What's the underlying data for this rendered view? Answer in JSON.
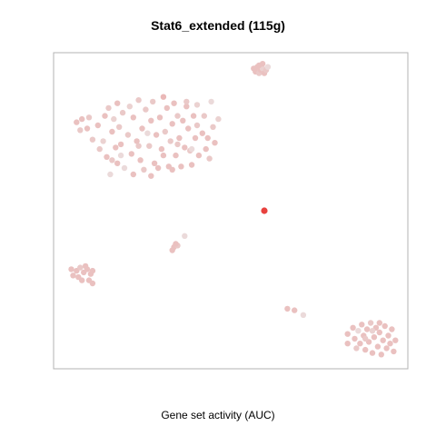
{
  "chart_data": {
    "type": "scatter",
    "title": "Stat6_extended (115g)",
    "xlabel": "Gene set activity (AUC)",
    "ylabel": "",
    "grid": false,
    "legend": false,
    "xlim": [
      0,
      100
    ],
    "ylim": [
      0,
      100
    ],
    "color_scale": {
      "low": "#ebebeb",
      "high": "#e8413e"
    },
    "series": [
      {
        "points": [
          {
            "x": 6.5,
            "y": 78,
            "v": 0.25
          },
          {
            "x": 7.5,
            "y": 75.5,
            "v": 0.2
          },
          {
            "x": 8,
            "y": 79,
            "v": 0.25
          },
          {
            "x": 9.5,
            "y": 76,
            "v": 0.25
          },
          {
            "x": 10,
            "y": 79.5,
            "v": 0.2
          },
          {
            "x": 11,
            "y": 72.5,
            "v": 0.2
          },
          {
            "x": 12.5,
            "y": 77,
            "v": 0.25
          },
          {
            "x": 13,
            "y": 69.5,
            "v": 0.2
          },
          {
            "x": 14,
            "y": 72,
            "v": 0.15
          },
          {
            "x": 14.5,
            "y": 80,
            "v": 0.25
          },
          {
            "x": 15,
            "y": 67,
            "v": 0.25
          },
          {
            "x": 15.5,
            "y": 82.5,
            "v": 0.2
          },
          {
            "x": 16.5,
            "y": 66,
            "v": 0.2
          },
          {
            "x": 16.5,
            "y": 75,
            "v": 0.25
          },
          {
            "x": 17,
            "y": 79,
            "v": 0.15
          },
          {
            "x": 17.5,
            "y": 70,
            "v": 0.25
          },
          {
            "x": 18,
            "y": 65,
            "v": 0.25
          },
          {
            "x": 18,
            "y": 84,
            "v": 0.25
          },
          {
            "x": 18.5,
            "y": 76.5,
            "v": 0.2
          },
          {
            "x": 19,
            "y": 71,
            "v": 0.25
          },
          {
            "x": 19.5,
            "y": 81,
            "v": 0.2
          },
          {
            "x": 20,
            "y": 63.5,
            "v": 0.1
          },
          {
            "x": 21,
            "y": 74,
            "v": 0.2
          },
          {
            "x": 22,
            "y": 68,
            "v": 0.25
          },
          {
            "x": 22.5,
            "y": 79.5,
            "v": 0.25
          },
          {
            "x": 23.5,
            "y": 72,
            "v": 0.25
          },
          {
            "x": 24,
            "y": 85,
            "v": 0.2
          },
          {
            "x": 24.5,
            "y": 66,
            "v": 0.25
          },
          {
            "x": 25,
            "y": 76,
            "v": 0.25
          },
          {
            "x": 25.5,
            "y": 63,
            "v": 0.2
          },
          {
            "x": 26,
            "y": 82,
            "v": 0.2
          },
          {
            "x": 27,
            "y": 70.5,
            "v": 0.2
          },
          {
            "x": 27.5,
            "y": 78.5,
            "v": 0.25
          },
          {
            "x": 28,
            "y": 84.5,
            "v": 0.2
          },
          {
            "x": 28.5,
            "y": 65,
            "v": 0.25
          },
          {
            "x": 29,
            "y": 74,
            "v": 0.25
          },
          {
            "x": 30,
            "y": 79.5,
            "v": 0.25
          },
          {
            "x": 30.5,
            "y": 69.5,
            "v": 0.25
          },
          {
            "x": 31,
            "y": 86,
            "v": 0.3
          },
          {
            "x": 31.5,
            "y": 75,
            "v": 0.2
          },
          {
            "x": 32,
            "y": 82.5,
            "v": 0.25
          },
          {
            "x": 32.5,
            "y": 64,
            "v": 0.25
          },
          {
            "x": 33,
            "y": 72,
            "v": 0.2
          },
          {
            "x": 33.5,
            "y": 77.5,
            "v": 0.25
          },
          {
            "x": 34,
            "y": 84,
            "v": 0.25
          },
          {
            "x": 34.5,
            "y": 67.5,
            "v": 0.25
          },
          {
            "x": 35,
            "y": 80,
            "v": 0.2
          },
          {
            "x": 35.5,
            "y": 73,
            "v": 0.25
          },
          {
            "x": 36,
            "y": 64,
            "v": 0.25
          },
          {
            "x": 36.5,
            "y": 78.5,
            "v": 0.25
          },
          {
            "x": 37,
            "y": 70,
            "v": 0.25
          },
          {
            "x": 37.5,
            "y": 83,
            "v": 0.25
          },
          {
            "x": 38,
            "y": 76,
            "v": 0.25
          },
          {
            "x": 38.5,
            "y": 69,
            "v": 0.2
          },
          {
            "x": 39,
            "y": 64.5,
            "v": 0.25
          },
          {
            "x": 39.5,
            "y": 80,
            "v": 0.25
          },
          {
            "x": 40,
            "y": 73,
            "v": 0.25
          },
          {
            "x": 40.5,
            "y": 77,
            "v": 0.2
          },
          {
            "x": 41,
            "y": 67.5,
            "v": 0.25
          },
          {
            "x": 42,
            "y": 74.5,
            "v": 0.25
          },
          {
            "x": 42.5,
            "y": 80,
            "v": 0.2
          },
          {
            "x": 43,
            "y": 69.5,
            "v": 0.25
          },
          {
            "x": 43.5,
            "y": 73,
            "v": 0.25
          },
          {
            "x": 44,
            "y": 66.5,
            "v": 0.2
          },
          {
            "x": 45,
            "y": 76.5,
            "v": 0.2
          },
          {
            "x": 45.5,
            "y": 71.5,
            "v": 0.25
          },
          {
            "x": 46.5,
            "y": 79,
            "v": 0.15
          },
          {
            "x": 37.5,
            "y": 84.5,
            "v": 0.2
          },
          {
            "x": 29.5,
            "y": 63.5,
            "v": 0.25
          },
          {
            "x": 19,
            "y": 67.5,
            "v": 0.1
          },
          {
            "x": 26.5,
            "y": 74.5,
            "v": 0.1
          },
          {
            "x": 35,
            "y": 71,
            "v": 0.2
          },
          {
            "x": 16,
            "y": 61.5,
            "v": 0.1
          },
          {
            "x": 21.5,
            "y": 83,
            "v": 0.15
          },
          {
            "x": 24,
            "y": 70.5,
            "v": 0.2
          },
          {
            "x": 31,
            "y": 67.5,
            "v": 0.25
          },
          {
            "x": 40.5,
            "y": 83.5,
            "v": 0.15
          },
          {
            "x": 44.5,
            "y": 84.5,
            "v": 0.1
          },
          {
            "x": 33.5,
            "y": 63,
            "v": 0.25
          },
          {
            "x": 27.5,
            "y": 61,
            "v": 0.25
          },
          {
            "x": 22.5,
            "y": 61.5,
            "v": 0.25
          },
          {
            "x": 39,
            "y": 69.5,
            "v": 0.1
          },
          {
            "x": 56.5,
            "y": 95,
            "v": 0.25
          },
          {
            "x": 57,
            "y": 94,
            "v": 0.25
          },
          {
            "x": 57.5,
            "y": 95.5,
            "v": 0.25
          },
          {
            "x": 58,
            "y": 93.5,
            "v": 0.2
          },
          {
            "x": 58.5,
            "y": 94.5,
            "v": 0.25
          },
          {
            "x": 59,
            "y": 95,
            "v": 0.15
          },
          {
            "x": 59.5,
            "y": 93.5,
            "v": 0.25
          },
          {
            "x": 60,
            "y": 94.5,
            "v": 0.2
          },
          {
            "x": 58,
            "y": 96,
            "v": 0.25
          },
          {
            "x": 60.5,
            "y": 95.5,
            "v": 0.1
          },
          {
            "x": 59,
            "y": 96.5,
            "v": 0.25
          },
          {
            "x": 59.5,
            "y": 50,
            "v": 1
          },
          {
            "x": 33.5,
            "y": 37.5,
            "v": 0.25
          },
          {
            "x": 34,
            "y": 38.5,
            "v": 0.25
          },
          {
            "x": 35,
            "y": 39,
            "v": 0.2
          },
          {
            "x": 34.5,
            "y": 39.5,
            "v": 0.25
          },
          {
            "x": 37,
            "y": 42,
            "v": 0.1
          },
          {
            "x": 5,
            "y": 31.5,
            "v": 0.25
          },
          {
            "x": 5.5,
            "y": 29.5,
            "v": 0.25
          },
          {
            "x": 6.5,
            "y": 31,
            "v": 0.25
          },
          {
            "x": 7,
            "y": 29,
            "v": 0.25
          },
          {
            "x": 7.5,
            "y": 32,
            "v": 0.2
          },
          {
            "x": 8,
            "y": 28,
            "v": 0.25
          },
          {
            "x": 8.5,
            "y": 30.5,
            "v": 0.25
          },
          {
            "x": 9.5,
            "y": 31.5,
            "v": 0.25
          },
          {
            "x": 10,
            "y": 28,
            "v": 0.25
          },
          {
            "x": 10.5,
            "y": 30,
            "v": 0.25
          },
          {
            "x": 11,
            "y": 31,
            "v": 0.25
          },
          {
            "x": 11,
            "y": 27,
            "v": 0.25
          },
          {
            "x": 9,
            "y": 32.5,
            "v": 0.25
          },
          {
            "x": 66,
            "y": 19,
            "v": 0.25
          },
          {
            "x": 68,
            "y": 18.5,
            "v": 0.25
          },
          {
            "x": 70.5,
            "y": 17,
            "v": 0.1
          },
          {
            "x": 83,
            "y": 11,
            "v": 0.25
          },
          {
            "x": 83,
            "y": 8,
            "v": 0.25
          },
          {
            "x": 84.5,
            "y": 13,
            "v": 0.25
          },
          {
            "x": 85,
            "y": 9.5,
            "v": 0.25
          },
          {
            "x": 85.5,
            "y": 6.5,
            "v": 0.2
          },
          {
            "x": 86,
            "y": 12,
            "v": 0.1
          },
          {
            "x": 86.5,
            "y": 8,
            "v": 0.25
          },
          {
            "x": 87,
            "y": 14,
            "v": 0.25
          },
          {
            "x": 87.5,
            "y": 10.5,
            "v": 0.25
          },
          {
            "x": 88,
            "y": 6,
            "v": 0.25
          },
          {
            "x": 88.5,
            "y": 12.5,
            "v": 0.25
          },
          {
            "x": 89,
            "y": 8.5,
            "v": 0.25
          },
          {
            "x": 89.5,
            "y": 14.5,
            "v": 0.2
          },
          {
            "x": 90,
            "y": 5,
            "v": 0.25
          },
          {
            "x": 90.5,
            "y": 10,
            "v": 0.25
          },
          {
            "x": 91,
            "y": 13,
            "v": 0.25
          },
          {
            "x": 91.5,
            "y": 7,
            "v": 0.25
          },
          {
            "x": 92,
            "y": 11.5,
            "v": 0.25
          },
          {
            "x": 92.5,
            "y": 4.5,
            "v": 0.25
          },
          {
            "x": 93,
            "y": 9,
            "v": 0.25
          },
          {
            "x": 93.5,
            "y": 13.5,
            "v": 0.25
          },
          {
            "x": 94,
            "y": 6.5,
            "v": 0.25
          },
          {
            "x": 94.5,
            "y": 10.5,
            "v": 0.25
          },
          {
            "x": 95,
            "y": 8,
            "v": 0.25
          },
          {
            "x": 95.5,
            "y": 12.5,
            "v": 0.25
          },
          {
            "x": 96,
            "y": 5.5,
            "v": 0.25
          },
          {
            "x": 96.5,
            "y": 9,
            "v": 0.25
          },
          {
            "x": 88,
            "y": 9.5,
            "v": 0.2
          },
          {
            "x": 90,
            "y": 12,
            "v": 0.15
          },
          {
            "x": 92,
            "y": 14.5,
            "v": 0.25
          }
        ]
      }
    ]
  }
}
